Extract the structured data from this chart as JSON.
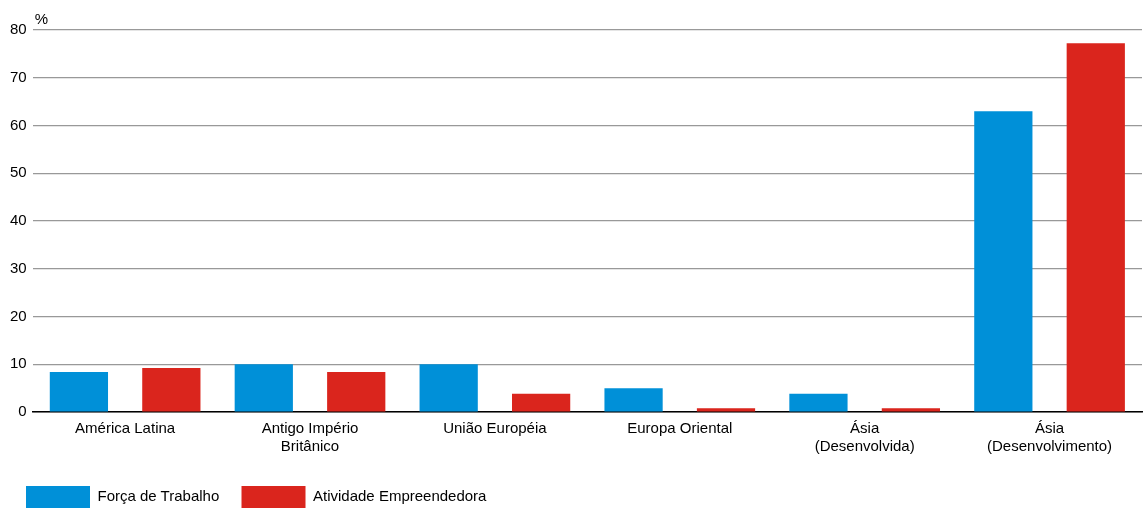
{
  "chart_data": {
    "type": "bar",
    "ylabel": "%",
    "categories": [
      "América Latina",
      "Antigo Império Britânico",
      "União Européia",
      "Europa Oriental",
      "Ásia (Desenvolvida)",
      "Ásia (Desenvolvimento)"
    ],
    "series": [
      {
        "name": "Força de Trabalho",
        "color": "#0090d8",
        "values": [
          8.4,
          10,
          10,
          5,
          3.8,
          63
        ]
      },
      {
        "name": "Atividade Empreendedora",
        "color": "#da251d",
        "values": [
          9.2,
          8.4,
          3.8,
          0.8,
          0.8,
          77.2
        ]
      }
    ],
    "ylim": [
      0,
      80
    ],
    "yticks": [
      0,
      10,
      20,
      30,
      40,
      50,
      60,
      70,
      80
    ],
    "grid": "y",
    "legend": "bottom left"
  }
}
